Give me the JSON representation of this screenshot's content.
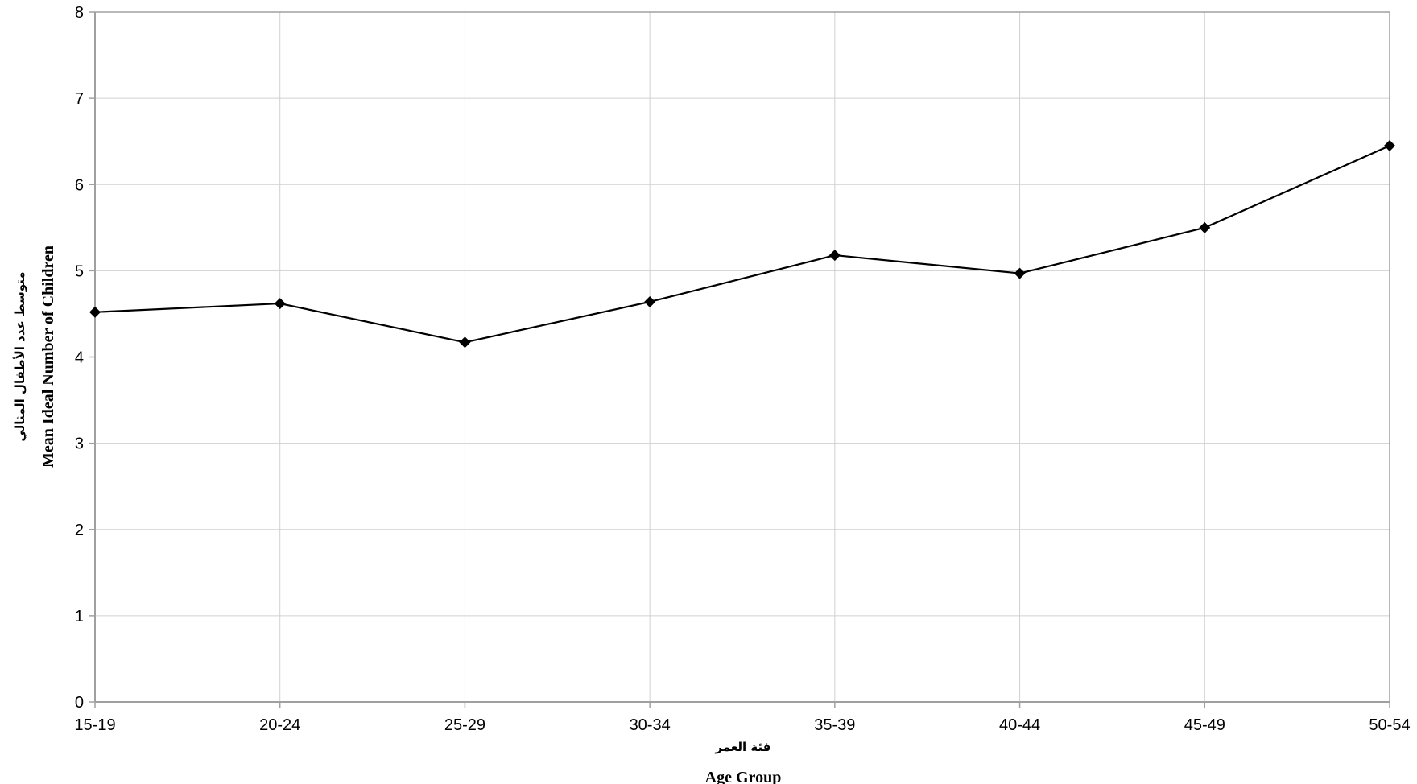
{
  "chart_data": {
    "type": "line",
    "title": "",
    "categories": [
      "15-19",
      "20-24",
      "25-29",
      "30-34",
      "35-39",
      "40-44",
      "45-49",
      "50-54"
    ],
    "series": [
      {
        "values": [
          4.52,
          4.62,
          4.17,
          4.64,
          5.18,
          4.97,
          5.5,
          6.45
        ]
      }
    ],
    "xlabel_ar": "فئة العمر",
    "xlabel": "Age Group",
    "ylabel_ar": "متوسط عدد الأطفال المثالي",
    "ylabel": "Mean Ideal Number of Children",
    "ylim": [
      0,
      8
    ],
    "yticks": [
      0,
      1,
      2,
      3,
      4,
      5,
      6,
      7,
      8
    ],
    "grid": true,
    "legend": "none",
    "colors": {
      "line": "#000000",
      "marker": "#000000",
      "grid": "#d0d0d0",
      "axis": "#a0a0a0"
    },
    "marker": "diamond-icon"
  }
}
